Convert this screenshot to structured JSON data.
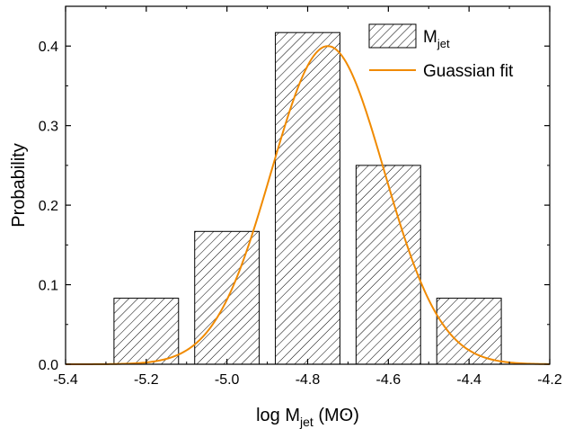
{
  "chart_data": {
    "type": "bar",
    "xlabel": {
      "main": "log M",
      "sub": "jet",
      "unit": " (Mʘ)"
    },
    "ylabel": "Probability",
    "xlim": [
      -5.4,
      -4.2
    ],
    "ylim": [
      0.0,
      0.45
    ],
    "x_ticks": [
      -5.4,
      -5.2,
      -5.0,
      -4.8,
      -4.6,
      -4.4,
      -4.2
    ],
    "x_tick_labels": [
      "-5.4",
      "-5.2",
      "-5.0",
      "-4.8",
      "-4.6",
      "-4.4",
      "-4.2"
    ],
    "y_ticks": [
      0.0,
      0.1,
      0.2,
      0.3,
      0.4
    ],
    "y_tick_labels": [
      "0.0",
      "0.1",
      "0.2",
      "0.3",
      "0.4"
    ],
    "bar_width": 0.16,
    "bars": [
      {
        "x": -5.2,
        "value": 0.083
      },
      {
        "x": -5.0,
        "value": 0.167
      },
      {
        "x": -4.8,
        "value": 0.417
      },
      {
        "x": -4.6,
        "value": 0.25
      },
      {
        "x": -4.4,
        "value": 0.083
      }
    ],
    "fit": {
      "type": "gaussian",
      "mean": -4.75,
      "sigma": 0.14,
      "amplitude": 0.4,
      "color": "#f08a00"
    },
    "legend": {
      "placement": "top-right",
      "entries": [
        {
          "kind": "hatched-bar",
          "main": "M",
          "sub": "jet"
        },
        {
          "kind": "line",
          "main": "Guassian fit",
          "sub": ""
        }
      ]
    },
    "grid": false
  }
}
